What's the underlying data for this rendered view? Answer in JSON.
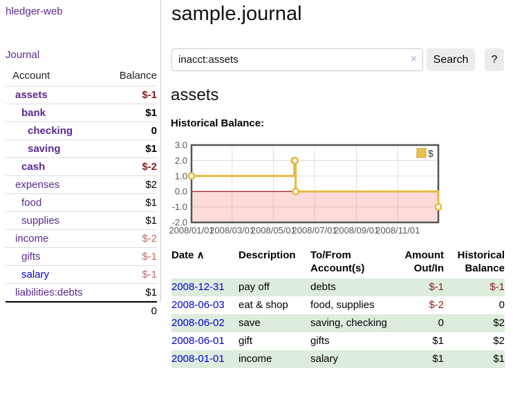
{
  "colors": {
    "purple_link": "#5b2a91",
    "blue_link": "#0000d6",
    "negative_strong": "#8b1a1a",
    "negative_soft": "#c06c6c",
    "row_stripe_green": "#deecde",
    "button_bg": "#ececec",
    "chart_line": "#e3bb3f",
    "chart_legend_fill": "#e9c24b",
    "chart_legend_border": "#c9a02a",
    "chart_zero_line": "#990000",
    "chart_negative_fill": "rgba(244,90,90,0.22)",
    "chart_border": "#545454",
    "chart_grid": "#dddddd"
  },
  "sidebar": {
    "brand": "hledger-web",
    "nav_journal": "Journal",
    "accounts": {
      "col_account": "Account",
      "col_balance": "Balance",
      "rows": [
        {
          "name": "assets",
          "depth": 0,
          "strong": true,
          "balance": "$-1",
          "negative": "strong"
        },
        {
          "name": "bank",
          "depth": 1,
          "strong": true,
          "balance": "$1"
        },
        {
          "name": "checking",
          "depth": 2,
          "strong": true,
          "balance": "0"
        },
        {
          "name": "saving",
          "depth": 2,
          "strong": true,
          "balance": "$1"
        },
        {
          "name": "cash",
          "depth": 1,
          "strong": true,
          "balance": "$-2",
          "negative": "strong"
        },
        {
          "name": "expenses",
          "depth": 0,
          "strong": false,
          "balance": "$2"
        },
        {
          "name": "food",
          "depth": 1,
          "strong": false,
          "balance": "$1"
        },
        {
          "name": "supplies",
          "depth": 1,
          "strong": false,
          "balance": "$1"
        },
        {
          "name": "income",
          "depth": 0,
          "strong": false,
          "balance": "$-2",
          "negative": "soft"
        },
        {
          "name": "gifts",
          "depth": 1,
          "strong": false,
          "balance": "$-1",
          "negative": "soft"
        },
        {
          "name": "salary",
          "depth": 1,
          "strong": false,
          "blue": true,
          "balance": "$-1",
          "negative": "soft"
        },
        {
          "name": "liabilities:debts",
          "depth": 0,
          "strong": false,
          "balance": "$1"
        }
      ],
      "total": "0"
    }
  },
  "main": {
    "title": "sample.journal",
    "search": {
      "value": "inacct:assets",
      "clear_icon": "×",
      "button": "Search",
      "help": "?"
    },
    "account_heading": "assets",
    "chart_label": "Historical Balance:"
  },
  "chart_data": {
    "type": "line",
    "step": true,
    "title": "Historical Balance",
    "series": [
      {
        "name": "$",
        "points": [
          [
            "2008-01-01",
            1
          ],
          [
            "2008-06-01",
            2
          ],
          [
            "2008-06-02",
            2
          ],
          [
            "2008-06-03",
            0
          ],
          [
            "2008-12-31",
            -1
          ]
        ]
      }
    ],
    "x_domain": [
      "2008-01-01",
      "2008-12-31"
    ],
    "ylim": [
      -2,
      3
    ],
    "y_ticks": [
      {
        "v": 3,
        "label": "3.0"
      },
      {
        "v": 2,
        "label": "2.0"
      },
      {
        "v": 1,
        "label": "1.0"
      },
      {
        "v": 0,
        "label": "0.0"
      },
      {
        "v": -1,
        "label": "-1.0"
      },
      {
        "v": -2,
        "label": "-2.0"
      }
    ],
    "x_ticks": [
      {
        "d": "2008-01-01",
        "label": "2008/01/01"
      },
      {
        "d": "2008-03-01",
        "label": "2008/03/01"
      },
      {
        "d": "2008-05-01",
        "label": "2008/05/01"
      },
      {
        "d": "2008-07-01",
        "label": "2008/07/01"
      },
      {
        "d": "2008-09-01",
        "label": "2008/09/01"
      },
      {
        "d": "2008-11-01",
        "label": "2008/11/01"
      }
    ],
    "legend_position": "top-right",
    "grid": true,
    "negative_region_shaded": true
  },
  "table": {
    "headers": [
      {
        "lines": [
          "Date"
        ],
        "sort_icon": "∧"
      },
      {
        "lines": [
          "Description"
        ]
      },
      {
        "lines": [
          "To/From",
          "Account(s)"
        ]
      },
      {
        "lines": [
          "Amount",
          "Out/In"
        ],
        "align": "right"
      },
      {
        "lines": [
          "Historical",
          "Balance"
        ],
        "align": "right"
      }
    ],
    "rows": [
      {
        "date": "2008-12-31",
        "description": "pay off",
        "accounts": "debts",
        "amount": "$-1",
        "balance": "$-1"
      },
      {
        "date": "2008-06-03",
        "description": "eat & shop",
        "accounts": "food, supplies",
        "amount": "$-2",
        "balance": "0"
      },
      {
        "date": "2008-06-02",
        "description": "save",
        "accounts": "saving, checking",
        "amount": "0",
        "balance": "$2"
      },
      {
        "date": "2008-06-01",
        "description": "gift",
        "accounts": "gifts",
        "amount": "$1",
        "balance": "$2"
      },
      {
        "date": "2008-01-01",
        "description": "income",
        "accounts": "salary",
        "amount": "$1",
        "balance": "$1"
      }
    ]
  }
}
